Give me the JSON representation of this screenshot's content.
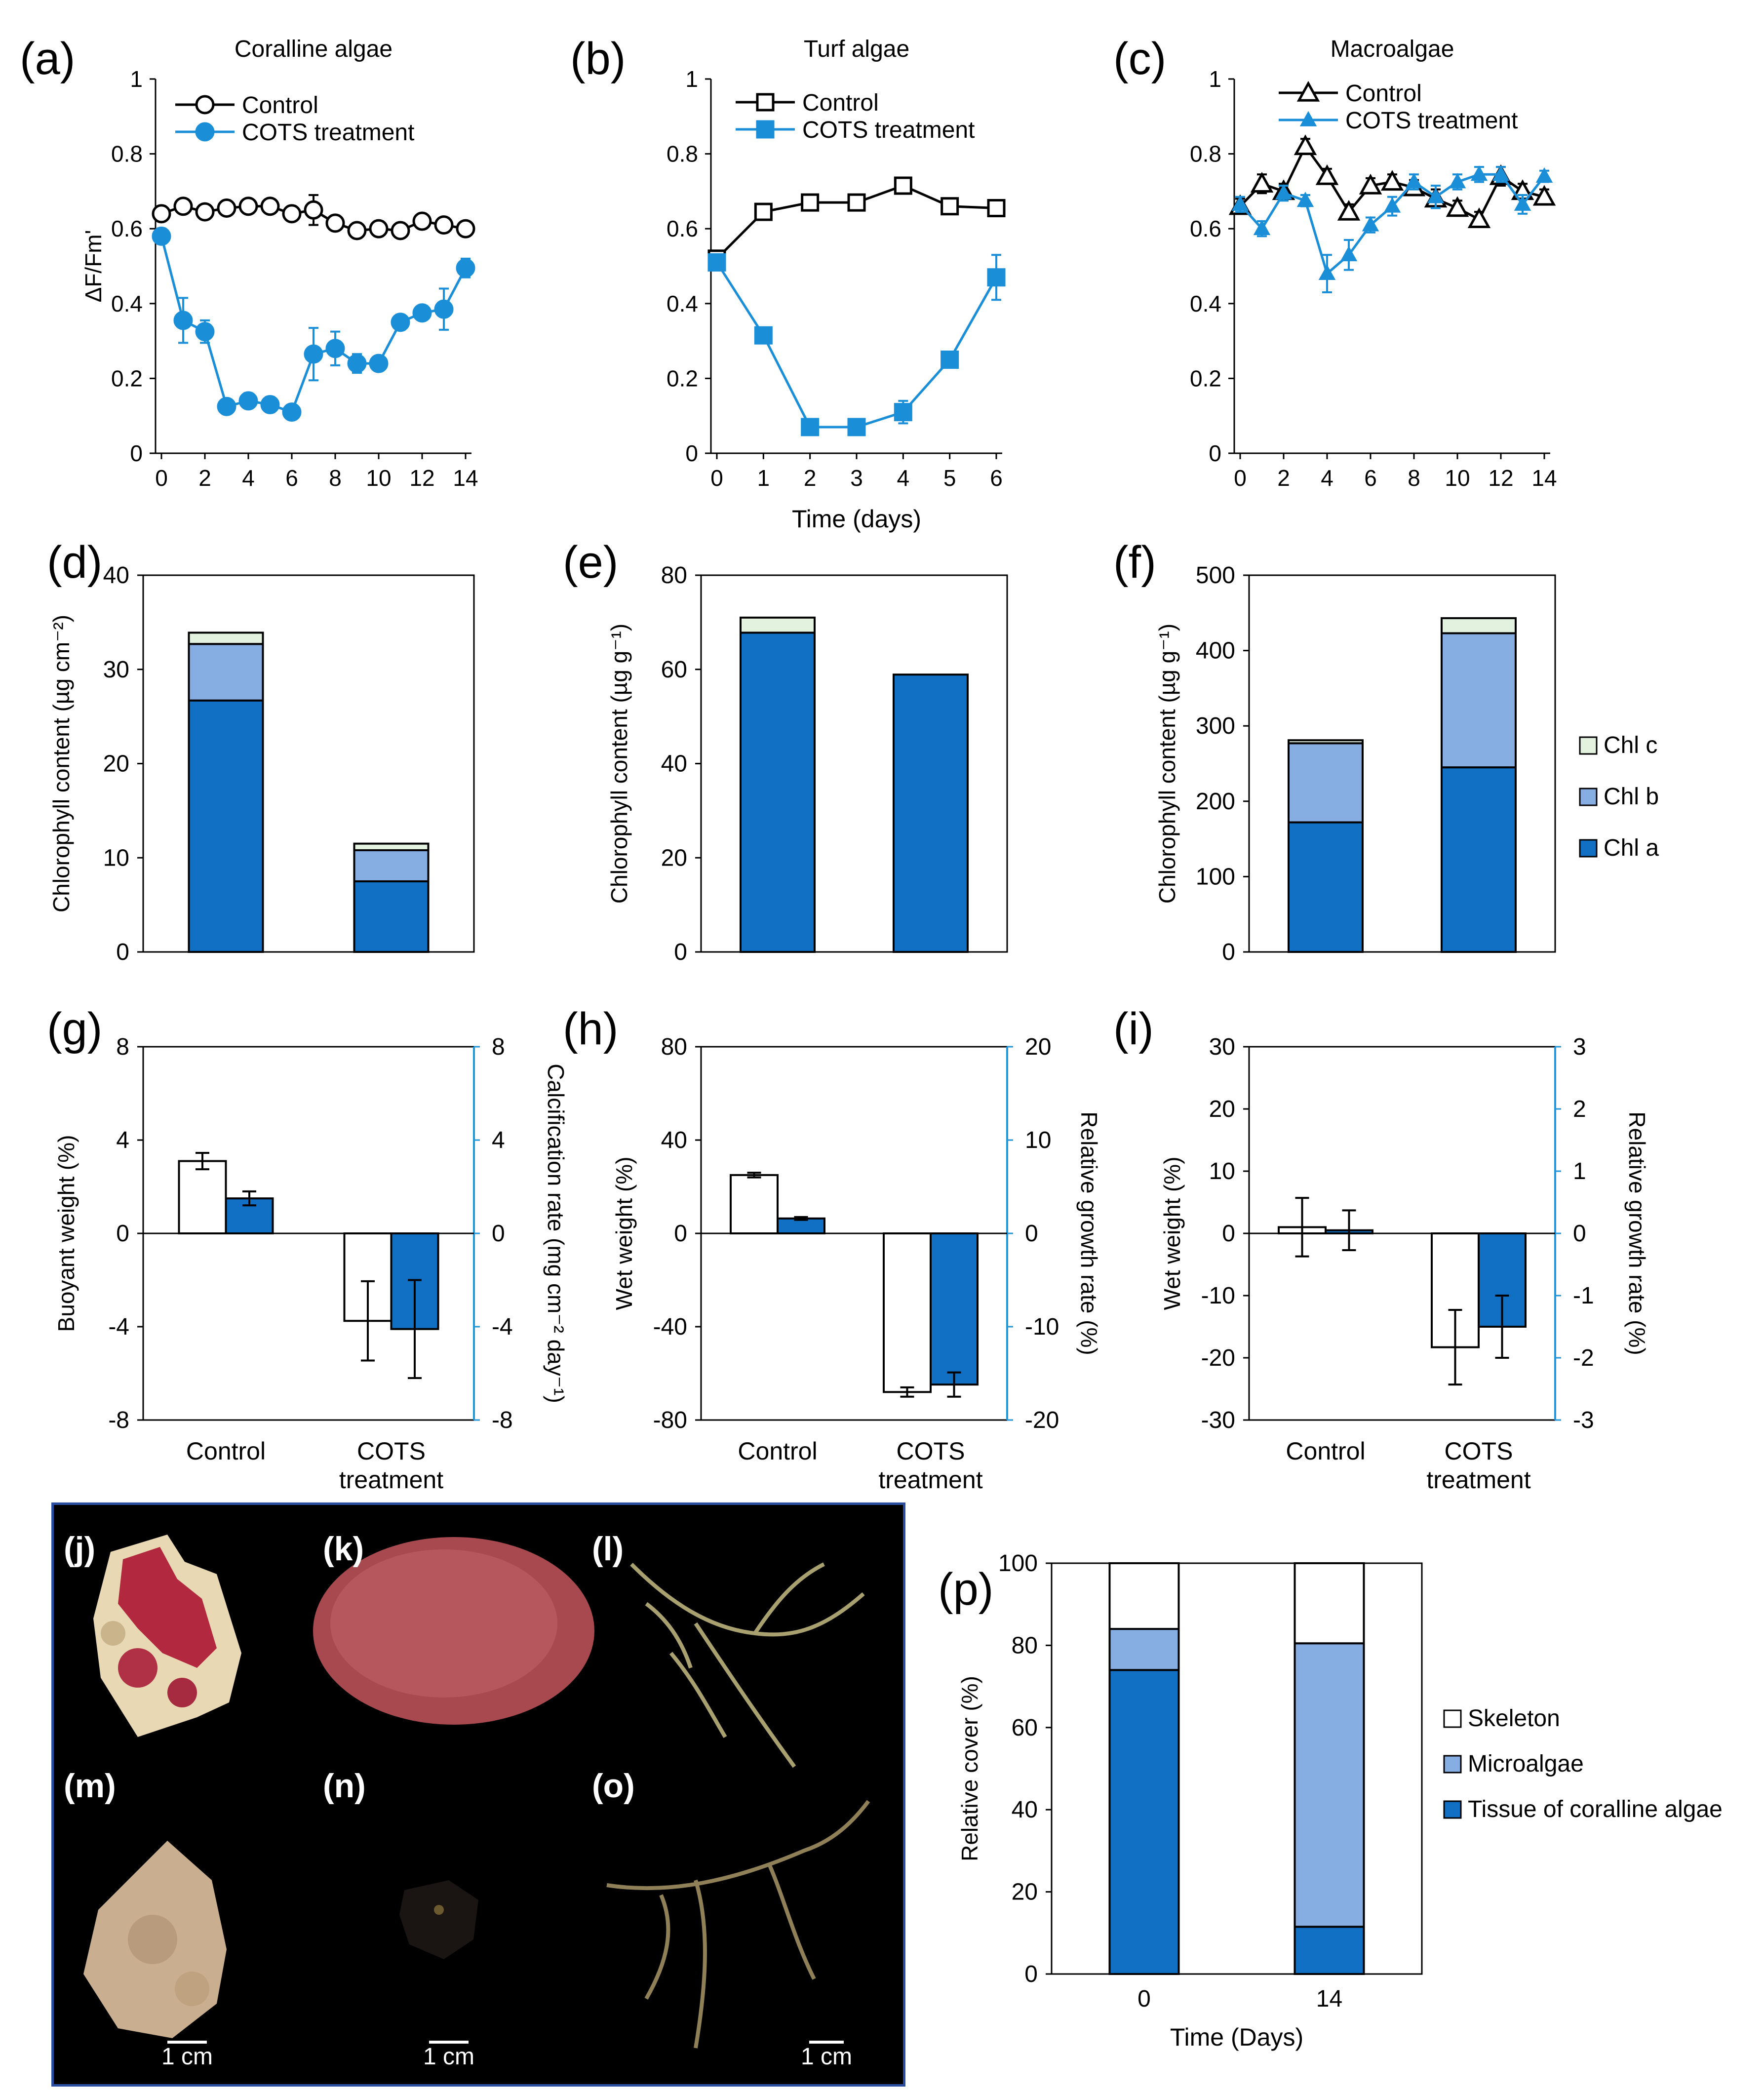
{
  "chart_data": [
    {
      "id": "a",
      "type": "line",
      "panel_label": "(a)",
      "title": "Coralline algae",
      "xlabel": "",
      "ylabel": "ΔF/Fm'",
      "xlim": [
        0,
        14
      ],
      "xticks": [
        0,
        2,
        4,
        6,
        8,
        10,
        12,
        14
      ],
      "ylim": [
        0,
        1
      ],
      "yticks": [
        0,
        0.2,
        0.4,
        0.6,
        0.8,
        1
      ],
      "legend": "top-right",
      "x": [
        0,
        1,
        2,
        3,
        4,
        5,
        6,
        7,
        8,
        9,
        10,
        11,
        12,
        13,
        14
      ],
      "series": [
        {
          "name": "Control",
          "marker": "circle-open",
          "color": "#000000",
          "values": [
            0.64,
            0.66,
            0.645,
            0.655,
            0.66,
            0.66,
            0.64,
            0.65,
            0.615,
            0.595,
            0.6,
            0.595,
            0.62,
            0.61,
            0.6
          ],
          "errors": [
            0.015,
            0.01,
            0.01,
            0.01,
            0.01,
            0.01,
            0.01,
            0.04,
            0.015,
            0.02,
            0.02,
            0.015,
            0.01,
            0.01,
            0.01
          ]
        },
        {
          "name": "COTS treatment",
          "marker": "circle-filled",
          "color": "#1b8ed8",
          "values": [
            0.58,
            0.355,
            0.325,
            0.125,
            0.14,
            0.13,
            0.11,
            0.265,
            0.28,
            0.24,
            0.24,
            0.35,
            0.375,
            0.385,
            0.495
          ],
          "errors": [
            0.02,
            0.06,
            0.03,
            0.015,
            0.01,
            0.02,
            0.015,
            0.07,
            0.045,
            0.025,
            0.015,
            0.02,
            0.01,
            0.055,
            0.025
          ]
        }
      ]
    },
    {
      "id": "b",
      "type": "line",
      "panel_label": "(b)",
      "title": "Turf algae",
      "xlabel": "Time (days)",
      "ylabel": "",
      "xlim": [
        0,
        6
      ],
      "xticks": [
        0,
        1,
        2,
        3,
        4,
        5,
        6
      ],
      "ylim": [
        0,
        1
      ],
      "yticks": [
        0,
        0.2,
        0.4,
        0.6,
        0.8,
        1
      ],
      "legend": "top-right",
      "x": [
        0,
        1,
        2,
        3,
        4,
        5,
        6
      ],
      "series": [
        {
          "name": "Control",
          "marker": "square-open",
          "color": "#000000",
          "values": [
            0.52,
            0.645,
            0.67,
            0.67,
            0.715,
            0.66,
            0.655
          ],
          "errors": [
            0.01,
            0.01,
            0.01,
            0.01,
            0.01,
            0.01,
            0.01
          ]
        },
        {
          "name": "COTS treatment",
          "marker": "square-filled",
          "color": "#1b8ed8",
          "values": [
            0.51,
            0.315,
            0.07,
            0.07,
            0.11,
            0.25,
            0.47
          ],
          "errors": [
            0.01,
            0.01,
            0.005,
            0.005,
            0.03,
            0.01,
            0.06
          ]
        }
      ]
    },
    {
      "id": "c",
      "type": "line",
      "panel_label": "(c)",
      "title": "Macroalgae",
      "xlabel": "",
      "ylabel": "",
      "xlim": [
        0,
        14
      ],
      "xticks": [
        0,
        2,
        4,
        6,
        8,
        10,
        12,
        14
      ],
      "ylim": [
        0,
        1
      ],
      "yticks": [
        0,
        0.2,
        0.4,
        0.6,
        0.8,
        1
      ],
      "legend": "top-right",
      "x": [
        0,
        1,
        2,
        3,
        4,
        5,
        6,
        7,
        8,
        9,
        10,
        11,
        12,
        13,
        14
      ],
      "series": [
        {
          "name": "Control",
          "marker": "triangle-open",
          "color": "#000000",
          "values": [
            0.66,
            0.72,
            0.7,
            0.82,
            0.74,
            0.645,
            0.715,
            0.725,
            0.71,
            0.68,
            0.655,
            0.625,
            0.74,
            0.7,
            0.685
          ],
          "errors": [
            0.02,
            0.025,
            0.02,
            0.02,
            0.02,
            0.02,
            0.02,
            0.02,
            0.02,
            0.025,
            0.02,
            0.02,
            0.025,
            0.02,
            0.02
          ]
        },
        {
          "name": "COTS treatment",
          "marker": "triangle-filled",
          "color": "#1b8ed8",
          "values": [
            0.665,
            0.6,
            0.695,
            0.675,
            0.48,
            0.53,
            0.61,
            0.66,
            0.725,
            0.685,
            0.725,
            0.745,
            0.745,
            0.665,
            0.74
          ],
          "errors": [
            0.02,
            0.02,
            0.02,
            0.015,
            0.05,
            0.04,
            0.02,
            0.025,
            0.02,
            0.03,
            0.02,
            0.02,
            0.02,
            0.025,
            0.015
          ]
        }
      ]
    },
    {
      "id": "d",
      "type": "bar",
      "stacked": true,
      "panel_label": "(d)",
      "ylabel": "Chlorophyll content (µg cm⁻²)",
      "ylim": [
        0,
        40
      ],
      "yticks": [
        0,
        10,
        20,
        30,
        40
      ],
      "categories": [
        "Control",
        "COTS treatment"
      ],
      "series": [
        {
          "name": "Chl a",
          "color": "#1170c4",
          "values": [
            26.7,
            7.5
          ]
        },
        {
          "name": "Chl b",
          "color": "#87aee3",
          "values": [
            6.0,
            3.3
          ]
        },
        {
          "name": "Chl c",
          "color": "#e3f2de",
          "values": [
            1.2,
            0.7
          ]
        }
      ]
    },
    {
      "id": "e",
      "type": "bar",
      "stacked": true,
      "panel_label": "(e)",
      "ylabel": "Chlorophyll content (µg g⁻¹)",
      "ylim": [
        0,
        80
      ],
      "yticks": [
        0,
        20,
        40,
        60,
        80
      ],
      "categories": [
        "Control",
        "COTS treatment"
      ],
      "series": [
        {
          "name": "Chl a",
          "color": "#1170c4",
          "values": [
            67.8,
            58.9
          ]
        },
        {
          "name": "Chl b",
          "color": "#87aee3",
          "values": [
            0,
            0
          ]
        },
        {
          "name": "Chl c",
          "color": "#e3f2de",
          "values": [
            3.2,
            0
          ]
        }
      ]
    },
    {
      "id": "f",
      "type": "bar",
      "stacked": true,
      "panel_label": "(f)",
      "ylabel": "Chlorophyll content (µg g⁻¹)",
      "ylim": [
        0,
        500
      ],
      "yticks": [
        0,
        100,
        200,
        300,
        400,
        500
      ],
      "categories": [
        "Control",
        "COTS treatment"
      ],
      "legend": "right",
      "legend_entries": [
        "Chl c",
        "Chl b",
        "Chl a"
      ],
      "series": [
        {
          "name": "Chl a",
          "color": "#1170c4",
          "values": [
            172,
            245
          ]
        },
        {
          "name": "Chl b",
          "color": "#87aee3",
          "values": [
            105,
            178
          ]
        },
        {
          "name": "Chl c",
          "color": "#e3f2de",
          "values": [
            4,
            20
          ]
        }
      ]
    },
    {
      "id": "g",
      "type": "bar",
      "panel_label": "(g)",
      "ylabel": "Buoyant weight (%)",
      "ylabel_right": "Calcification rate (mg cm⁻² day⁻¹)",
      "ylim": [
        -8,
        8
      ],
      "yticks": [
        -8,
        -4,
        0,
        4,
        8
      ],
      "ylim_right": [
        -8,
        8
      ],
      "yticks_right": [
        -8,
        -4,
        0,
        4,
        8
      ],
      "categories": [
        "Control",
        "COTS\ntreatment"
      ],
      "series": [
        {
          "color": "#ffffff",
          "axis": "left",
          "values": [
            3.1,
            -3.75
          ],
          "errors": [
            0.35,
            1.7
          ]
        },
        {
          "color": "#1170c4",
          "axis": "right",
          "values": [
            1.5,
            -4.1
          ],
          "errors": [
            0.3,
            2.1
          ]
        }
      ]
    },
    {
      "id": "h",
      "type": "bar",
      "panel_label": "(h)",
      "ylabel": "Wet weight (%)",
      "ylabel_right": "Relative growth rate (%)",
      "ylim": [
        -80,
        80
      ],
      "yticks": [
        -80,
        -40,
        0,
        40,
        80
      ],
      "ylim_right": [
        -20,
        20
      ],
      "yticks_right": [
        -20,
        -10,
        0,
        10,
        20
      ],
      "categories": [
        "Control",
        "COTS\ntreatment"
      ],
      "series": [
        {
          "color": "#ffffff",
          "axis": "left",
          "values": [
            25,
            -68
          ],
          "errors": [
            1,
            2
          ]
        },
        {
          "color": "#1170c4",
          "axis": "right",
          "values": [
            1.6,
            -16.2
          ],
          "errors": [
            0.15,
            1.3
          ]
        }
      ]
    },
    {
      "id": "i",
      "type": "bar",
      "panel_label": "(i)",
      "ylabel": "Wet weight (%)",
      "ylabel_right": "Relative growth rate (%)",
      "ylim": [
        -30,
        30
      ],
      "yticks": [
        -30,
        -20,
        -10,
        0,
        10,
        20,
        30
      ],
      "ylim_right": [
        -3,
        3
      ],
      "yticks_right": [
        -3,
        -2,
        -1,
        0,
        1,
        2,
        3
      ],
      "categories": [
        "Control",
        "COTS\ntreatment"
      ],
      "series": [
        {
          "color": "#ffffff",
          "axis": "left",
          "values": [
            1,
            -18.3
          ],
          "errors": [
            4.7,
            6
          ]
        },
        {
          "color": "#1170c4",
          "axis": "right",
          "values": [
            0.05,
            -1.5
          ],
          "errors": [
            0.32,
            0.5
          ]
        }
      ]
    },
    {
      "id": "p",
      "type": "bar",
      "stacked": true,
      "panel_label": "(p)",
      "xlabel": "Time (Days)",
      "ylabel": "Relative cover (%)",
      "ylim": [
        0,
        100
      ],
      "yticks": [
        0,
        20,
        40,
        60,
        80,
        100
      ],
      "categories": [
        "0",
        "14"
      ],
      "legend": "right",
      "legend_entries": [
        "Skeleton",
        "Microalgae",
        "Tissue of coralline algae"
      ],
      "series": [
        {
          "name": "Tissue of coralline algae",
          "color": "#1170c4",
          "values": [
            74,
            11.5
          ]
        },
        {
          "name": "Microalgae",
          "color": "#87aee3",
          "values": [
            10,
            69
          ]
        },
        {
          "name": "Skeleton",
          "color": "#ffffff",
          "values": [
            16,
            19.5
          ]
        }
      ]
    }
  ],
  "photos": {
    "labels": [
      "(j)",
      "(k)",
      "(l)",
      "(m)",
      "(n)",
      "(o)"
    ],
    "scale_text": "1 cm"
  }
}
